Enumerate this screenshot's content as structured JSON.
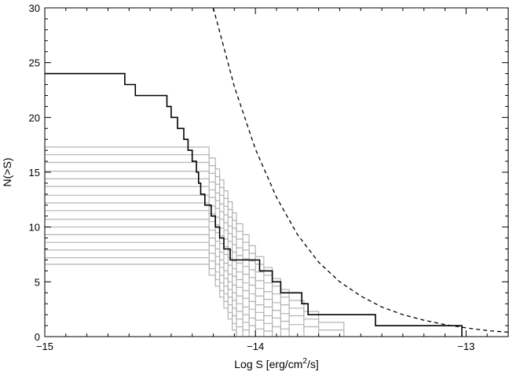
{
  "chart_data": {
    "type": "line",
    "xlabel": "Log S [erg/cm2/s]",
    "xlabel_parts": {
      "before": "Log S [erg/cm",
      "sup": "2",
      "after": "/s]"
    },
    "ylabel": "N(>S)",
    "xlim": [
      -15,
      -12.8
    ],
    "ylim": [
      0,
      30
    ],
    "xticks": [
      -15,
      -14,
      -13
    ],
    "xtick_labels": [
      "−15",
      "−14",
      "−13"
    ],
    "yticks": [
      0,
      5,
      10,
      15,
      20,
      25,
      30
    ],
    "ytick_labels": [
      "0",
      "5",
      "10",
      "15",
      "20",
      "25",
      "30"
    ],
    "grid": false,
    "observed": {
      "color": "#000000",
      "steps": [
        [
          -15.0,
          24
        ],
        [
          -14.62,
          23
        ],
        [
          -14.57,
          22
        ],
        [
          -14.42,
          21
        ],
        [
          -14.4,
          20
        ],
        [
          -14.37,
          19
        ],
        [
          -14.34,
          18
        ],
        [
          -14.32,
          17
        ],
        [
          -14.3,
          16
        ],
        [
          -14.28,
          15
        ],
        [
          -14.27,
          14
        ],
        [
          -14.26,
          13
        ],
        [
          -14.24,
          12
        ],
        [
          -14.21,
          11
        ],
        [
          -14.19,
          10
        ],
        [
          -14.17,
          9
        ],
        [
          -14.15,
          8
        ],
        [
          -14.12,
          7
        ],
        [
          -13.98,
          6
        ],
        [
          -13.92,
          5
        ],
        [
          -13.88,
          4
        ],
        [
          -13.78,
          3
        ],
        [
          -13.75,
          2
        ],
        [
          -13.43,
          1
        ],
        [
          -13.02,
          0
        ]
      ]
    },
    "simulations": {
      "color": "#b3b3b3",
      "levels": [
        17.3,
        16.6,
        15.9,
        15.1,
        14.4,
        13.7,
        12.9,
        12.2,
        11.5,
        10.7,
        10.0,
        9.3,
        8.6,
        7.9,
        7.2,
        6.6
      ],
      "start": -15.0,
      "drop_points": [
        -14.22,
        -14.19,
        -14.17,
        -14.15,
        -14.13,
        -14.11,
        -14.09,
        -14.06,
        -14.03,
        -14.0,
        -13.96,
        -13.92,
        -13.88,
        -13.84,
        -13.77,
        -13.7,
        -13.58,
        -13.43,
        -13.22
      ]
    },
    "expected": {
      "style": "dashed",
      "color": "#000000",
      "points": [
        [
          -14.2,
          30.0
        ],
        [
          -14.1,
          22.8
        ],
        [
          -14.0,
          17.1
        ],
        [
          -13.9,
          12.7
        ],
        [
          -13.8,
          9.3
        ],
        [
          -13.7,
          6.8
        ],
        [
          -13.6,
          5.0
        ],
        [
          -13.5,
          3.7
        ],
        [
          -13.4,
          2.7
        ],
        [
          -13.3,
          2.0
        ],
        [
          -13.2,
          1.5
        ],
        [
          -13.1,
          1.1
        ],
        [
          -13.0,
          0.8
        ],
        [
          -12.9,
          0.55
        ],
        [
          -12.8,
          0.4
        ]
      ]
    }
  }
}
